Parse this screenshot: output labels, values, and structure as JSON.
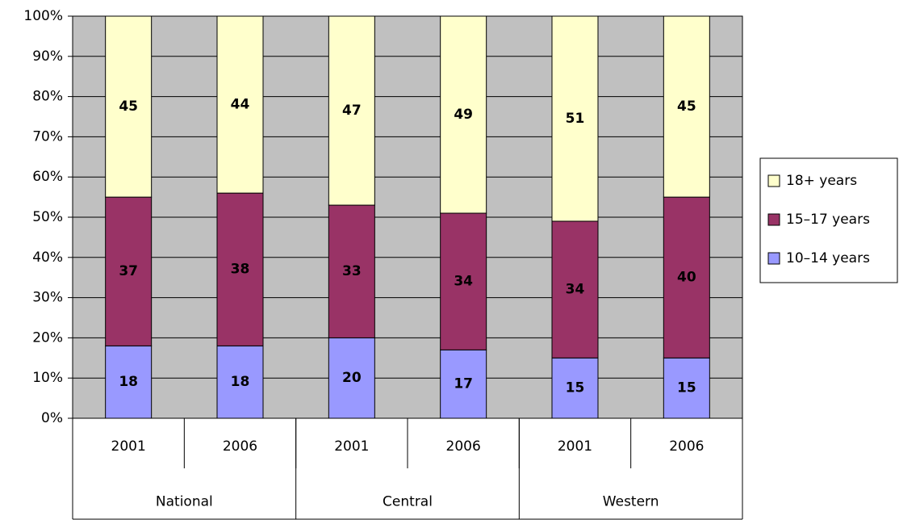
{
  "chart_data": {
    "type": "stacked_bar_100",
    "categories": [
      "2001",
      "2006",
      "2001",
      "2006",
      "2001",
      "2006"
    ],
    "groups": [
      "National",
      "Central",
      "Western"
    ],
    "series": [
      {
        "name": "10–14 years",
        "color": "#9999ff",
        "values": [
          18,
          18,
          20,
          17,
          15,
          15
        ]
      },
      {
        "name": "15–17 years",
        "color": "#993366",
        "values": [
          37,
          38,
          33,
          34,
          34,
          40
        ]
      },
      {
        "name": "18+ years",
        "color": "#ffffcc",
        "values": [
          45,
          44,
          47,
          49,
          51,
          45
        ]
      }
    ],
    "ylim": [
      0,
      100
    ],
    "yticks": [
      {
        "value": 0,
        "label": "0%"
      },
      {
        "value": 10,
        "label": "10%"
      },
      {
        "value": 20,
        "label": "20%"
      },
      {
        "value": 30,
        "label": "30%"
      },
      {
        "value": 40,
        "label": "40%"
      },
      {
        "value": 50,
        "label": "50%"
      },
      {
        "value": 60,
        "label": "60%"
      },
      {
        "value": 70,
        "label": "70%"
      },
      {
        "value": 80,
        "label": "80%"
      },
      {
        "value": 90,
        "label": "90%"
      },
      {
        "value": 100,
        "label": "100%"
      }
    ],
    "grid": true,
    "legend": "right"
  }
}
